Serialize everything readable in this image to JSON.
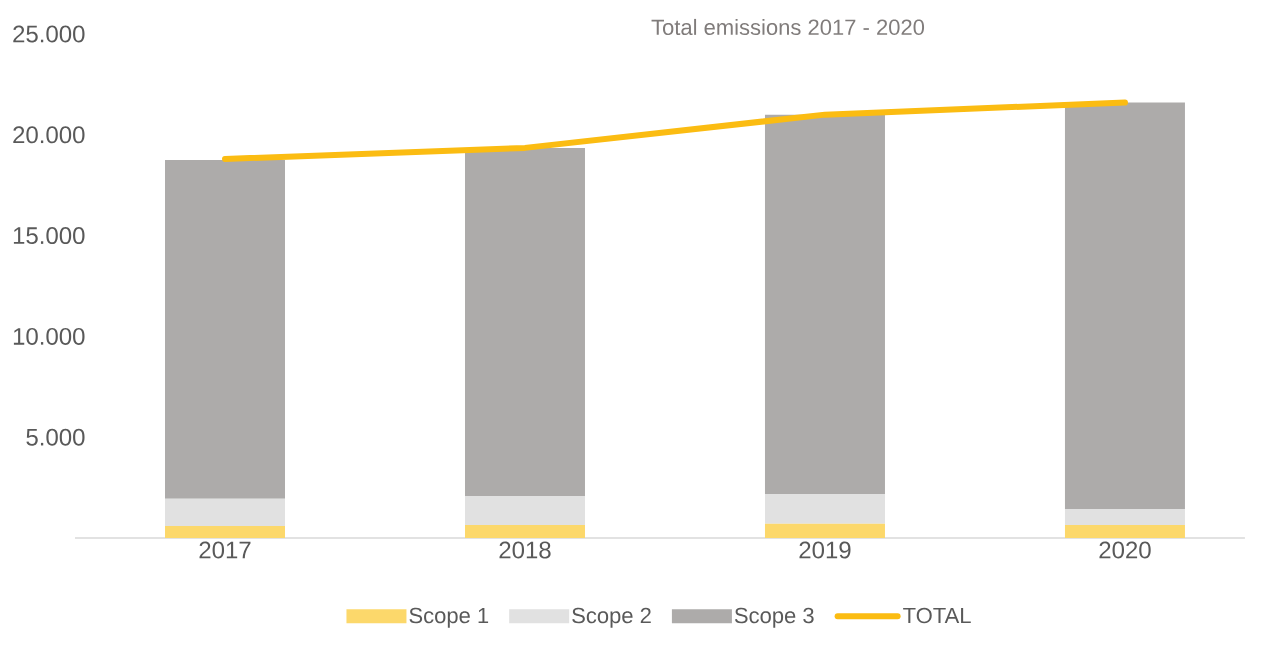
{
  "chart_data": {
    "type": "bar",
    "title": "Total emissions 2017 - 2020",
    "categories": [
      "2017",
      "2018",
      "2019",
      "2020"
    ],
    "stacked": true,
    "series": [
      {
        "name": "Scope 1",
        "color": "#fcd86b",
        "values": [
          600,
          650,
          700,
          650
        ]
      },
      {
        "name": "Scope 2",
        "color": "#e1e1e1",
        "values": [
          1350,
          1430,
          1480,
          790
        ]
      },
      {
        "name": "Scope 3",
        "color": "#adabaa",
        "values": [
          16800,
          17270,
          18820,
          20160
        ]
      },
      {
        "name": "TOTAL",
        "type": "line",
        "color": "#fbbc12",
        "values": [
          18800,
          19350,
          21000,
          21600
        ]
      }
    ],
    "ylim": [
      0,
      25000
    ],
    "yticks": [
      {
        "value": 5000,
        "label": "5.000"
      },
      {
        "value": 10000,
        "label": "10.000"
      },
      {
        "value": 15000,
        "label": "15.000"
      },
      {
        "value": 20000,
        "label": "20.000"
      },
      {
        "value": 25000,
        "label": "25.000"
      }
    ],
    "legend": "bottom"
  }
}
